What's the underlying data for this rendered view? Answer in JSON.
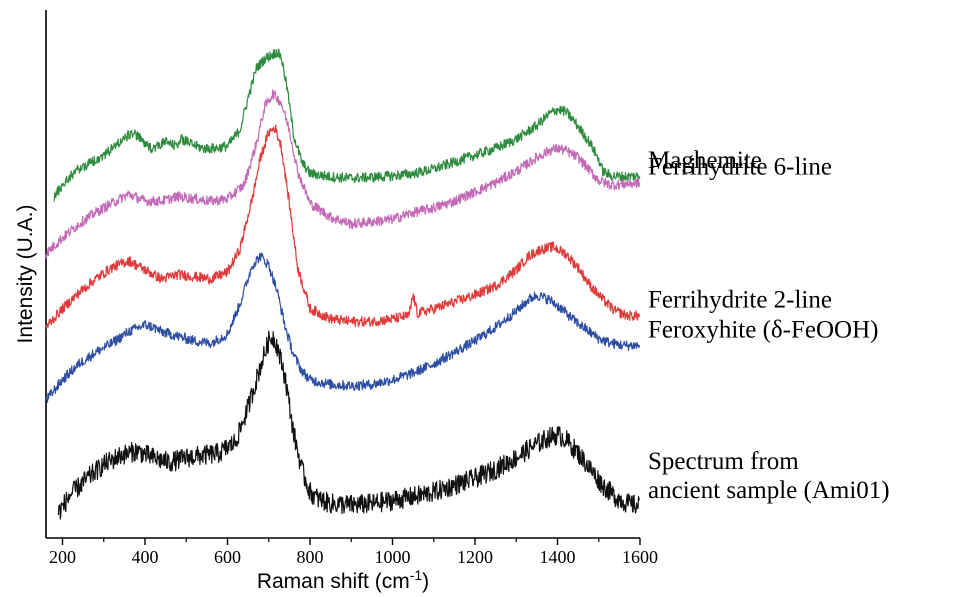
{
  "chart_data": {
    "type": "line",
    "title": "",
    "xlabel": "Raman shift (cm",
    "xlabel_sup": "-1",
    "xlabel_end": ")",
    "ylabel": "Intensity (U.A.)",
    "xlim": [
      160,
      1600
    ],
    "ylim": [
      0,
      11.3
    ],
    "x_ticks": [
      200,
      400,
      600,
      800,
      1000,
      1200,
      1400,
      1600
    ],
    "x_minor_ticks": [
      300,
      500,
      700,
      900,
      1100,
      1300,
      1500
    ],
    "y_ticks_shown": false,
    "grid": false,
    "legend": "labels at right end of each series",
    "series": [
      {
        "name": "Maghemite",
        "color": "#2e8b3e",
        "label_lines": [
          "Maghemite"
        ],
        "x": [
          180,
          200,
          230,
          260,
          300,
          340,
          370,
          390,
          410,
          430,
          450,
          470,
          490,
          510,
          540,
          570,
          600,
          630,
          650,
          670,
          690,
          710,
          720,
          730,
          745,
          760,
          780,
          800,
          850,
          900,
          950,
          1000,
          1050,
          1100,
          1150,
          1200,
          1250,
          1300,
          1350,
          1380,
          1400,
          1420,
          1440,
          1460,
          1480,
          1500,
          1510,
          1530,
          1560,
          1600
        ],
        "y": [
          7.45,
          7.7,
          8.0,
          8.15,
          8.35,
          8.65,
          8.85,
          8.7,
          8.5,
          8.55,
          8.65,
          8.55,
          8.7,
          8.6,
          8.5,
          8.5,
          8.55,
          8.9,
          9.6,
          10.25,
          10.45,
          10.55,
          10.6,
          10.5,
          9.8,
          8.8,
          8.2,
          7.95,
          7.88,
          7.85,
          7.87,
          7.9,
          7.95,
          8.05,
          8.2,
          8.35,
          8.5,
          8.7,
          9.0,
          9.25,
          9.35,
          9.3,
          9.1,
          8.85,
          8.6,
          8.25,
          8.0,
          7.9,
          7.88,
          7.9
        ]
      },
      {
        "name": "Ferrihydrite 6-line",
        "color": "#c36ab7",
        "label_lines": [
          "Ferrihydrite 6-line"
        ],
        "x": [
          160,
          200,
          240,
          280,
          320,
          360,
          400,
          440,
          480,
          520,
          560,
          600,
          640,
          670,
          690,
          710,
          730,
          750,
          770,
          800,
          850,
          900,
          950,
          1000,
          1050,
          1100,
          1150,
          1200,
          1250,
          1300,
          1350,
          1380,
          1400,
          1420,
          1450,
          1480,
          1500,
          1530,
          1560,
          1600
        ],
        "y": [
          6.2,
          6.55,
          6.85,
          7.1,
          7.3,
          7.5,
          7.35,
          7.35,
          7.45,
          7.4,
          7.35,
          7.4,
          7.7,
          8.6,
          9.4,
          9.7,
          9.5,
          8.9,
          8.0,
          7.3,
          7.0,
          6.85,
          6.9,
          6.95,
          7.1,
          7.2,
          7.35,
          7.55,
          7.75,
          8.0,
          8.3,
          8.45,
          8.5,
          8.45,
          8.3,
          8.0,
          7.8,
          7.7,
          7.72,
          7.75
        ]
      },
      {
        "name": "Ferrihydrite 2-line",
        "color": "#e03a3a",
        "label_lines": [
          "Ferrihydrite 2-line"
        ],
        "x": [
          160,
          200,
          240,
          280,
          320,
          360,
          400,
          440,
          480,
          520,
          560,
          600,
          630,
          660,
          680,
          700,
          715,
          730,
          750,
          770,
          800,
          850,
          900,
          950,
          1000,
          1040,
          1050,
          1060,
          1100,
          1150,
          1200,
          1250,
          1300,
          1330,
          1360,
          1390,
          1420,
          1450,
          1480,
          1510,
          1540,
          1570,
          1600
        ],
        "y": [
          4.6,
          5.0,
          5.35,
          5.65,
          5.9,
          6.05,
          5.85,
          5.65,
          5.75,
          5.7,
          5.65,
          5.8,
          6.3,
          7.4,
          8.3,
          8.85,
          8.95,
          8.55,
          7.3,
          5.9,
          5.0,
          4.78,
          4.72,
          4.72,
          4.78,
          4.85,
          5.3,
          4.9,
          5.0,
          5.15,
          5.3,
          5.5,
          5.85,
          6.15,
          6.3,
          6.35,
          6.2,
          5.9,
          5.5,
          5.2,
          4.95,
          4.85,
          4.85
        ]
      },
      {
        "name": "Feroxyhite (δ-FeOOH)",
        "color": "#2d4ea3",
        "label_lines": [
          "Feroxyhite (δ-FeOOH)"
        ],
        "x": [
          160,
          200,
          240,
          280,
          320,
          360,
          400,
          420,
          440,
          480,
          520,
          560,
          600,
          630,
          660,
          680,
          700,
          720,
          740,
          760,
          780,
          800,
          850,
          900,
          950,
          1000,
          1050,
          1100,
          1150,
          1200,
          1250,
          1300,
          1330,
          1350,
          1380,
          1410,
          1440,
          1470,
          1500,
          1530,
          1560,
          1600
        ],
        "y": [
          3.0,
          3.45,
          3.8,
          4.05,
          4.25,
          4.5,
          4.65,
          4.6,
          4.5,
          4.4,
          4.3,
          4.25,
          4.45,
          5.1,
          5.95,
          6.15,
          5.95,
          5.4,
          4.6,
          4.0,
          3.65,
          3.45,
          3.35,
          3.32,
          3.35,
          3.45,
          3.6,
          3.8,
          4.05,
          4.3,
          4.6,
          4.95,
          5.2,
          5.3,
          5.2,
          5.0,
          4.75,
          4.55,
          4.35,
          4.25,
          4.2,
          4.2
        ]
      },
      {
        "name": "Spectrum from ancient sample (Ami01)",
        "color": "#111111",
        "label_lines": [
          "Spectrum from",
          "ancient sample (Ami01)"
        ],
        "x": [
          190,
          220,
          260,
          300,
          340,
          380,
          420,
          460,
          500,
          540,
          580,
          620,
          650,
          680,
          700,
          710,
          720,
          740,
          760,
          780,
          800,
          820,
          850,
          900,
          950,
          1000,
          1050,
          1100,
          1150,
          1200,
          1250,
          1300,
          1340,
          1380,
          1400,
          1420,
          1450,
          1480,
          1510,
          1540,
          1570,
          1600
        ],
        "y": [
          0.55,
          0.95,
          1.3,
          1.6,
          1.8,
          1.9,
          1.75,
          1.65,
          1.75,
          1.8,
          1.85,
          2.1,
          2.85,
          3.75,
          4.3,
          4.4,
          4.2,
          3.5,
          2.3,
          1.5,
          1.0,
          0.85,
          0.75,
          0.72,
          0.75,
          0.82,
          0.9,
          1.0,
          1.15,
          1.3,
          1.5,
          1.75,
          2.0,
          2.2,
          2.25,
          2.15,
          1.85,
          1.5,
          1.15,
          0.9,
          0.75,
          0.7
        ]
      }
    ]
  }
}
